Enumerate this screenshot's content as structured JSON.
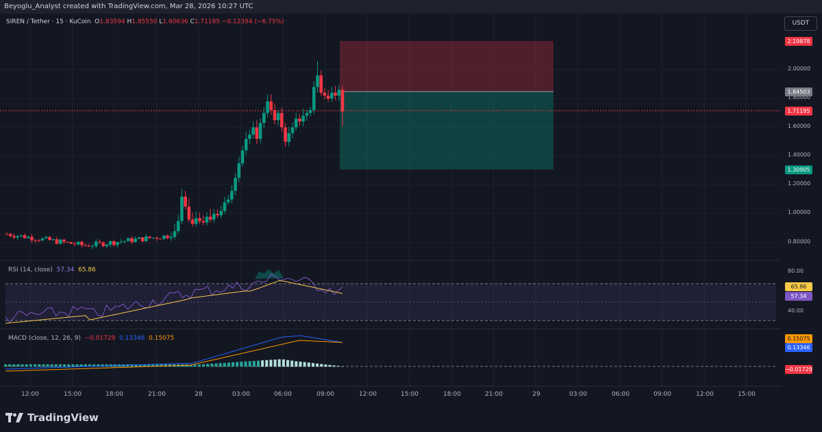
{
  "header": {
    "credit": "Beyoglu_Analyst created with TradingView.com, Mar 28, 2026 10:27 UTC"
  },
  "symbol": {
    "name": "SIREN / Tether · 15 · KuCoin",
    "open_label": "O",
    "open": "1.83594",
    "high_label": "H",
    "high": "1.85550",
    "low_label": "L",
    "low": "1.60636",
    "close_label": "C",
    "close": "1.71195",
    "change": "−0.12394 (−6.75%)"
  },
  "currency_button": "USDT",
  "price_axis": {
    "ticks": [
      "2.00000",
      "1.80000",
      "1.60000",
      "1.40000",
      "1.20000",
      "1.00000",
      "0.80000"
    ],
    "labels": {
      "stop": {
        "text": "2.19878",
        "color": "#f23645"
      },
      "entry": {
        "text": "1.84503",
        "color": "#787b86"
      },
      "last": {
        "text": "1.71195",
        "color": "#f23645"
      },
      "target": {
        "text": "1.30905",
        "color": "#089981"
      }
    }
  },
  "rsi": {
    "title": "RSI (14, close)",
    "value": "57.34",
    "ma": "65.86",
    "ticks": [
      "80.00",
      "40.00"
    ],
    "labels": {
      "ma": "65.86",
      "value": "57.34"
    }
  },
  "macd": {
    "title": "MACD (close, 12, 26, 9)",
    "hist": "−0.01729",
    "macd": "0.13346",
    "signal": "0.15075",
    "labels": {
      "signal": "0.15075",
      "macd": "0.13346",
      "hist": "−0.01729"
    }
  },
  "time_axis": [
    "12:00",
    "15:00",
    "18:00",
    "21:00",
    "28",
    "03:00",
    "06:00",
    "09:00",
    "12:00",
    "15:00",
    "18:00",
    "21:00",
    "29",
    "03:00",
    "06:00",
    "09:00",
    "12:00",
    "15:00"
  ],
  "colors": {
    "up": "#089981",
    "down": "#f23645",
    "background": "#131722"
  },
  "brand": {
    "name": "TradingView",
    "icon": "tradingview-logo-icon"
  }
}
